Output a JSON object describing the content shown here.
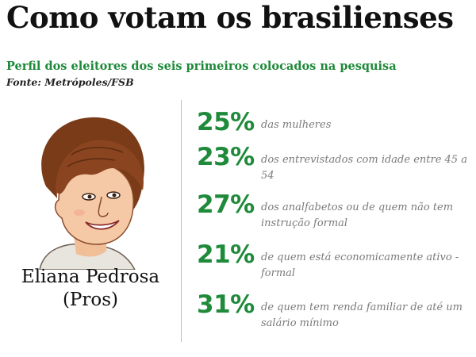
{
  "header": {
    "title": "Como votam os brasilienses",
    "subtitle": "Perfil dos eleitores dos seis primeiros colocados na pesquisa",
    "source": "Fonte: Metrópoles/FSB"
  },
  "candidate": {
    "name": "Eliana Pedrosa",
    "party": "(Pros)"
  },
  "stats": [
    {
      "percent": "25%",
      "description": "das mulheres"
    },
    {
      "percent": "23%",
      "description": "dos entrevistados com idade entre 45 a 54"
    },
    {
      "percent": "27%",
      "description": "dos analfabetos ou de quem não tem instrução formal"
    },
    {
      "percent": "21%",
      "description": "de quem está economicamente ativo - formal"
    },
    {
      "percent": "31%",
      "description": "de quem tem renda familiar de até um salário mínimo"
    }
  ],
  "colors": {
    "accent_green": "#1e8a3a",
    "hair_brown": "#7a3b18",
    "skin": "#f5c9a5",
    "text_gray": "#7a7a7a"
  }
}
